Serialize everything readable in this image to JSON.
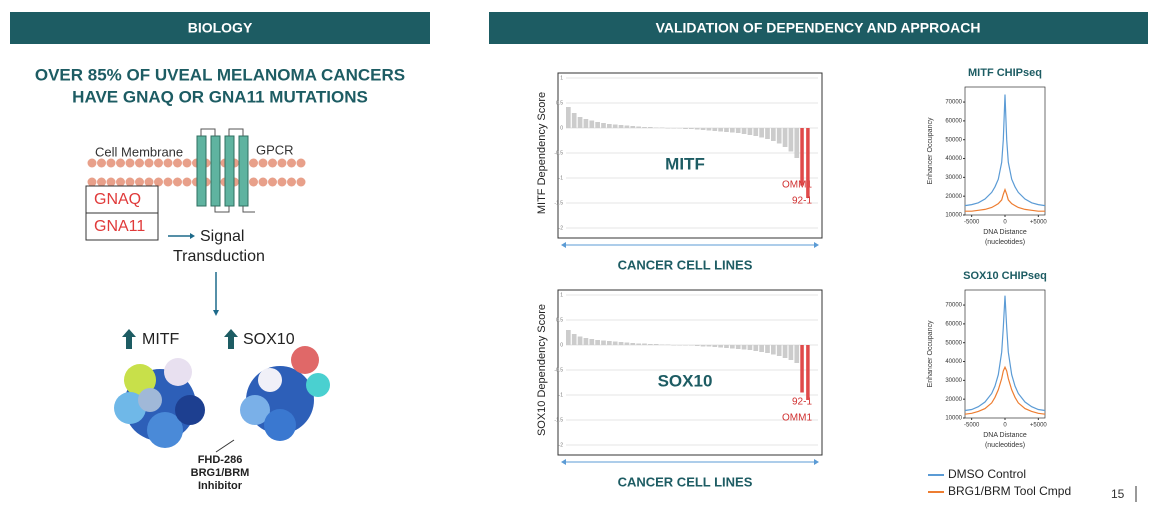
{
  "left_header": "BIOLOGY",
  "right_header": "VALIDATION OF DEPENDENCY AND APPROACH",
  "headline": [
    "OVER 85% OF UVEAL MELANOMA CANCERS",
    "HAVE GNAQ OR GNA11 MUTATIONS"
  ],
  "diagram": {
    "membrane_label": "Cell Membrane",
    "receptor_label": "GPCR",
    "g_proteins": [
      "GNAQ",
      "GNA11"
    ],
    "signal": [
      "Signal",
      "Transduction"
    ],
    "targets": [
      "MITF",
      "SOX10"
    ],
    "inhibitor": [
      "FHD-286",
      "BRG1/BRM",
      "Inhibitor"
    ]
  },
  "dependency_charts": [
    {
      "label": "MITF",
      "ylabel": "MITF Dependency Score",
      "xlabel": "CANCER CELL LINES",
      "ylim": [
        -2,
        1
      ],
      "yticks": [
        1,
        0.5,
        0,
        -0.5,
        -1,
        -1.5,
        -2
      ],
      "scores": [
        0.42,
        0.3,
        0.22,
        0.18,
        0.15,
        0.12,
        0.1,
        0.08,
        0.07,
        0.06,
        0.05,
        0.04,
        0.03,
        0.02,
        0.02,
        0.01,
        0.01,
        0,
        0,
        -0.01,
        -0.02,
        -0.02,
        -0.03,
        -0.04,
        -0.05,
        -0.06,
        -0.07,
        -0.08,
        -0.09,
        -0.1,
        -0.12,
        -0.14,
        -0.16,
        -0.19,
        -0.22,
        -0.26,
        -0.31,
        -0.38,
        -0.47,
        -0.6
      ],
      "highlights": [
        {
          "label": "OMM1",
          "score": -1.15
        },
        {
          "label": "92-1",
          "score": -1.4
        }
      ]
    },
    {
      "label": "SOX10",
      "ylabel": "SOX10 Dependency Score",
      "xlabel": "CANCER CELL LINES",
      "ylim": [
        -2,
        1
      ],
      "yticks": [
        1,
        0.5,
        0,
        -0.5,
        -1,
        -1.5,
        -2
      ],
      "scores": [
        0.3,
        0.22,
        0.17,
        0.14,
        0.12,
        0.1,
        0.09,
        0.08,
        0.07,
        0.06,
        0.05,
        0.04,
        0.03,
        0.03,
        0.02,
        0.02,
        0.01,
        0.01,
        0,
        0,
        -0.01,
        -0.01,
        -0.02,
        -0.03,
        -0.03,
        -0.04,
        -0.05,
        -0.06,
        -0.07,
        -0.08,
        -0.09,
        -0.1,
        -0.12,
        -0.14,
        -0.16,
        -0.19,
        -0.22,
        -0.26,
        -0.3,
        -0.36
      ],
      "highlights": [
        {
          "label": "92-1",
          "score": -0.95
        },
        {
          "label": "OMM1",
          "score": -1.1
        }
      ]
    }
  ],
  "chipseq_charts": [
    {
      "title": "MITF CHIPseq",
      "ylabel": "Enhancer Occupancy",
      "xlabel": [
        "DNA Distance",
        "(nucleotides)"
      ],
      "xlim": [
        -6000,
        6000
      ],
      "xticks": [
        -5000,
        0,
        {
          "value": 5000,
          "label": "+5000"
        }
      ],
      "ylim": [
        10000,
        78000
      ],
      "yticks": [
        10000,
        20000,
        30000,
        40000,
        50000,
        60000,
        70000
      ],
      "x": [
        -6000,
        -5000,
        -4000,
        -3000,
        -2000,
        -1500,
        -1000,
        -500,
        -250,
        0,
        250,
        500,
        1000,
        1500,
        2000,
        3000,
        4000,
        5000,
        6000
      ],
      "series": [
        {
          "name": "DMSO Control",
          "color": "#5b9bd5",
          "values": [
            15000,
            15500,
            16500,
            18500,
            22000,
            25000,
            29000,
            38000,
            50000,
            74000,
            50000,
            38000,
            29000,
            25000,
            22000,
            18500,
            16500,
            15500,
            15000
          ]
        },
        {
          "name": "BRG1/BRM Tool Cmpd",
          "color": "#ed7d31",
          "values": [
            12000,
            12000,
            12500,
            13000,
            14000,
            15000,
            16000,
            18000,
            21000,
            23500,
            21000,
            18000,
            16000,
            15000,
            14000,
            13000,
            12500,
            12000,
            12000
          ]
        }
      ]
    },
    {
      "title": "SOX10 CHIPseq",
      "ylabel": "Enhancer Occupancy",
      "xlabel": [
        "DNA Distance",
        "(nucleotides)"
      ],
      "xlim": [
        -6000,
        6000
      ],
      "xticks": [
        -5000,
        0,
        {
          "value": 5000,
          "label": "+5000"
        }
      ],
      "ylim": [
        10000,
        78000
      ],
      "yticks": [
        10000,
        20000,
        30000,
        40000,
        50000,
        60000,
        70000
      ],
      "x": [
        -6000,
        -5000,
        -4000,
        -3000,
        -2000,
        -1500,
        -1000,
        -500,
        -250,
        0,
        250,
        500,
        1000,
        1500,
        2000,
        3000,
        4000,
        5000,
        6000
      ],
      "series": [
        {
          "name": "DMSO Control",
          "color": "#5b9bd5",
          "values": [
            14000,
            14500,
            16000,
            18500,
            23000,
            27000,
            33000,
            45000,
            58000,
            75000,
            58000,
            45000,
            33000,
            27000,
            23000,
            18500,
            16000,
            14500,
            14000
          ]
        },
        {
          "name": "BRG1/BRM Tool Cmpd",
          "color": "#ed7d31",
          "values": [
            12000,
            12500,
            13500,
            15000,
            18000,
            21000,
            25000,
            31000,
            35000,
            37000,
            35000,
            31000,
            25000,
            21000,
            18000,
            15000,
            13500,
            12500,
            12000
          ]
        }
      ]
    }
  ],
  "page_number": "15"
}
